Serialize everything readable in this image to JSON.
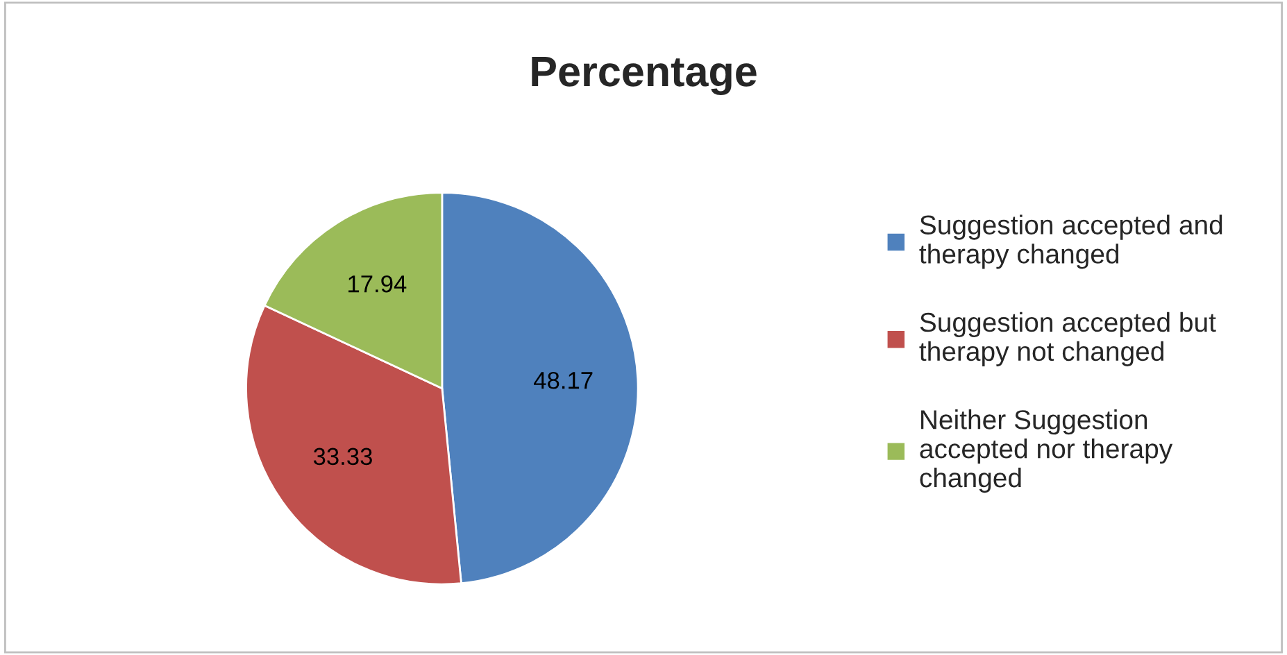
{
  "chart_data": {
    "type": "pie",
    "title": "Percentage",
    "categories": [
      "Suggestion accepted and therapy changed",
      "Suggestion accepted but therapy not changed",
      "Neither Suggestion accepted nor therapy changed"
    ],
    "values": [
      48.17,
      33.33,
      17.94
    ],
    "colors": [
      "#4f81bd",
      "#c0504d",
      "#9bbb59"
    ],
    "data_labels": true,
    "legend": "right"
  }
}
